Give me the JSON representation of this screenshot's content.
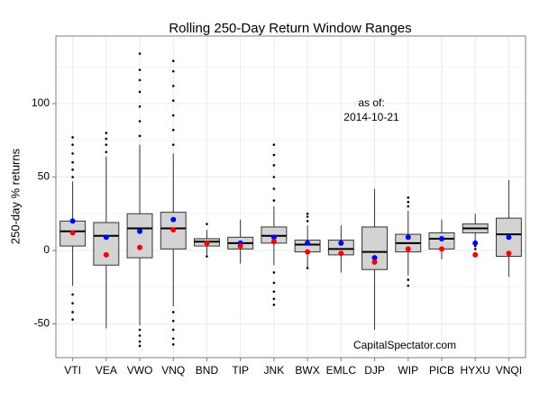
{
  "chart_data": {
    "type": "boxplot",
    "title": "Rolling 250-Day Return Window Ranges",
    "ylabel": "250-day % returns",
    "annotations": [
      "as of:",
      "2014-10-21",
      "CapitalSpectator.com"
    ],
    "categories": [
      "VTI",
      "VEA",
      "VWO",
      "VNQ",
      "BND",
      "TIP",
      "JNK",
      "BWX",
      "EMLC",
      "DJP",
      "WIP",
      "PICB",
      "HYXU",
      "VNQI"
    ],
    "box_color": "#d3d3d3",
    "boxes": [
      {
        "low": -24,
        "q1": 3,
        "median": 13,
        "q3": 20,
        "high": 47,
        "outliers": [
          -30,
          -36,
          -42,
          -47,
          50,
          55,
          60,
          66,
          72,
          77
        ]
      },
      {
        "low": -53,
        "q1": -10,
        "median": 10,
        "q3": 19,
        "high": 64,
        "outliers": [
          67,
          72,
          76,
          80
        ]
      },
      {
        "low": -51,
        "q1": -5,
        "median": 15,
        "q3": 25,
        "high": 72,
        "outliers": [
          -54,
          -58,
          -62,
          -65,
          78,
          88,
          98,
          108,
          116,
          123,
          134
        ]
      },
      {
        "low": -38,
        "q1": 1,
        "median": 15,
        "q3": 26,
        "high": 66,
        "outliers": [
          -42,
          -48,
          -54,
          -60,
          -64,
          72,
          82,
          92,
          102,
          112,
          122,
          129
        ]
      },
      {
        "low": -3,
        "q1": 3,
        "median": 6,
        "q3": 8,
        "high": 14,
        "outliers": [
          -4,
          18
        ]
      },
      {
        "low": -9,
        "q1": 1,
        "median": 5,
        "q3": 9,
        "high": 21,
        "outliers": []
      },
      {
        "low": -10,
        "q1": 5,
        "median": 10,
        "q3": 16,
        "high": 30,
        "outliers": [
          -15,
          -22,
          -28,
          -33,
          -37,
          34,
          42,
          50,
          58,
          65,
          72
        ]
      },
      {
        "low": -11,
        "q1": -1,
        "median": 4,
        "q3": 7,
        "high": 17,
        "outliers": [
          -12,
          20,
          23,
          25
        ]
      },
      {
        "low": -15,
        "q1": -3,
        "median": 1,
        "q3": 7,
        "high": 17,
        "outliers": []
      },
      {
        "low": -54,
        "q1": -13,
        "median": -1,
        "q3": 16,
        "high": 42,
        "outliers": []
      },
      {
        "low": -17,
        "q1": -1,
        "median": 5,
        "q3": 11,
        "high": 27,
        "outliers": [
          -20,
          -24,
          30,
          33,
          36
        ]
      },
      {
        "low": -6,
        "q1": 1,
        "median": 8,
        "q3": 12,
        "high": 21,
        "outliers": []
      },
      {
        "low": 5,
        "q1": 12,
        "median": 15,
        "q3": 18,
        "high": 25,
        "outliers": [
          3,
          1
        ]
      },
      {
        "low": -18,
        "q1": -4,
        "median": 11,
        "q3": 22,
        "high": 48,
        "outliers": []
      }
    ],
    "points": [
      {
        "color": "#0000ff",
        "values": [
          20,
          9,
          13,
          21,
          5,
          5,
          9,
          5,
          5,
          -5,
          9,
          8,
          5,
          9
        ]
      },
      {
        "color": "#ff0000",
        "values": [
          12,
          -3,
          2,
          14,
          5,
          3,
          6,
          -1,
          -2,
          -8,
          1,
          1,
          -3,
          -2
        ]
      }
    ],
    "ylim": [
      -73,
      146
    ],
    "yticks": [
      -50,
      0,
      50,
      100
    ],
    "minor_yticks": [
      -25,
      25,
      75,
      125
    ],
    "grid": true
  }
}
